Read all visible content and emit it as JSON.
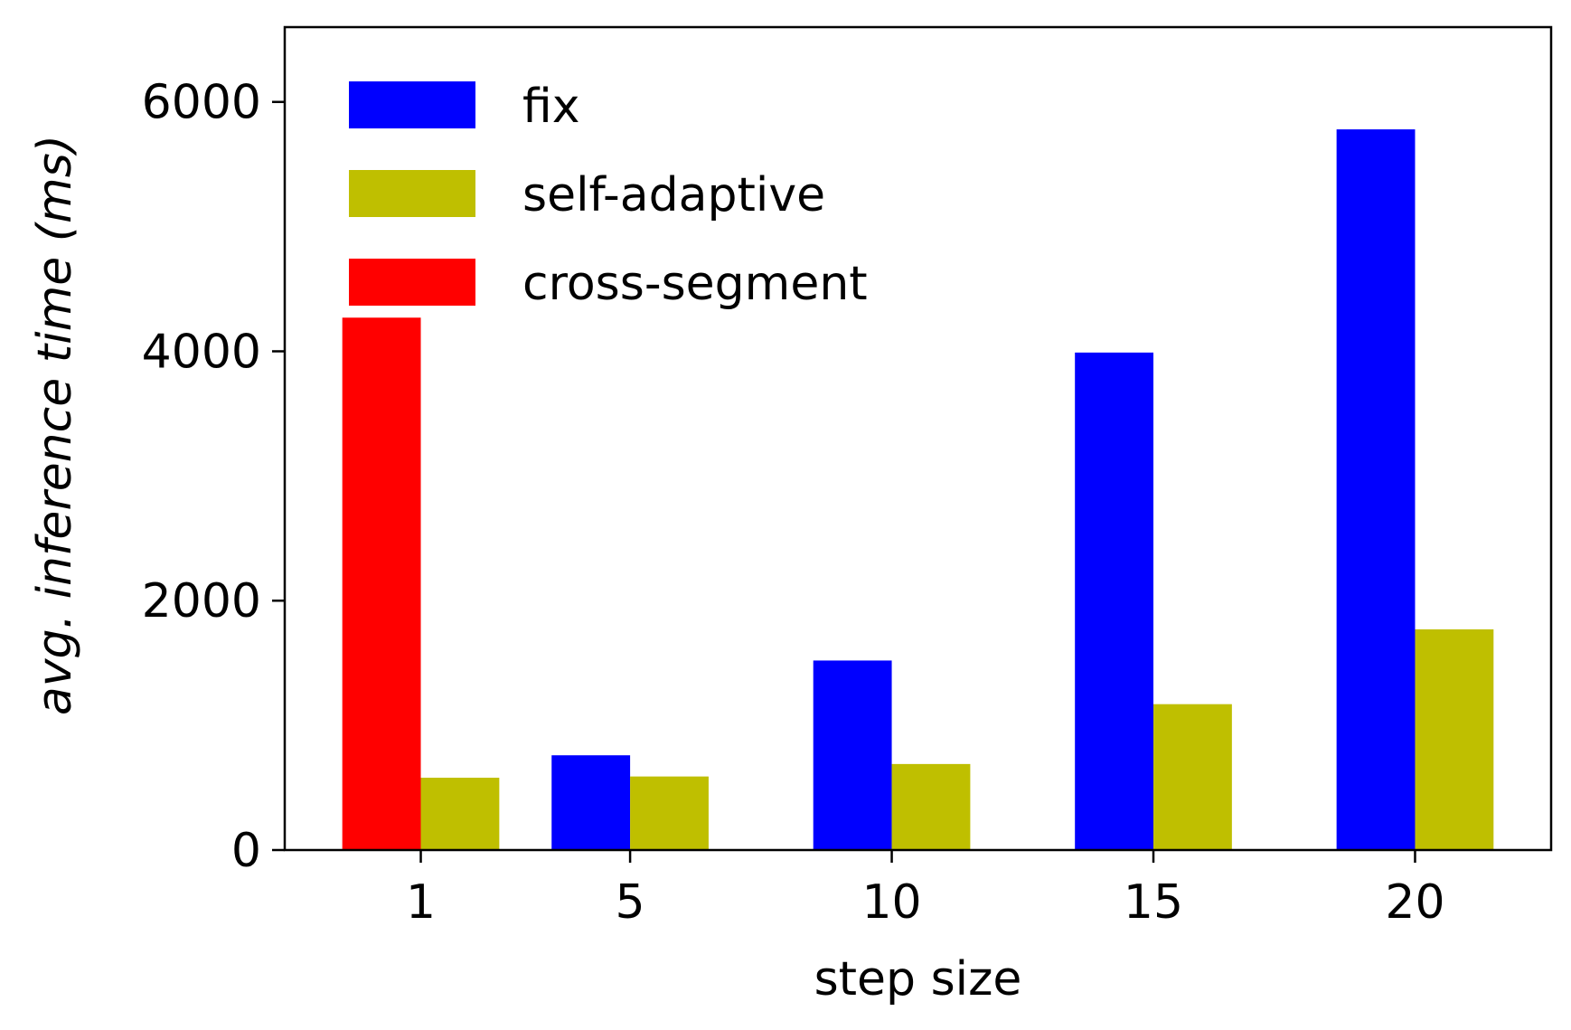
{
  "chart_data": {
    "type": "bar",
    "categories": [
      "1",
      "5",
      "10",
      "15",
      "20"
    ],
    "x": [
      1,
      5,
      10,
      15,
      20
    ],
    "series": [
      {
        "name": "fix",
        "color": "#0000ff",
        "values": [
          null,
          760,
          1520,
          3990,
          5780
        ]
      },
      {
        "name": "self-adaptive",
        "color": "#bfbf00",
        "values": [
          580,
          590,
          690,
          1170,
          1770
        ]
      },
      {
        "name": "cross-segment",
        "color": "#ff0000",
        "values": [
          4270,
          null,
          null,
          null,
          null
        ]
      }
    ],
    "xlabel": "step size",
    "ylabel": "avg. inference time (ms)",
    "ylim": [
      0,
      6600
    ],
    "xlim": [
      -1.6,
      22.6
    ],
    "yticks": [
      0,
      2000,
      4000,
      6000
    ],
    "ytick_labels": [
      "0",
      "2000",
      "4000",
      "6000"
    ],
    "grid": false,
    "legend_position": "top-left"
  }
}
